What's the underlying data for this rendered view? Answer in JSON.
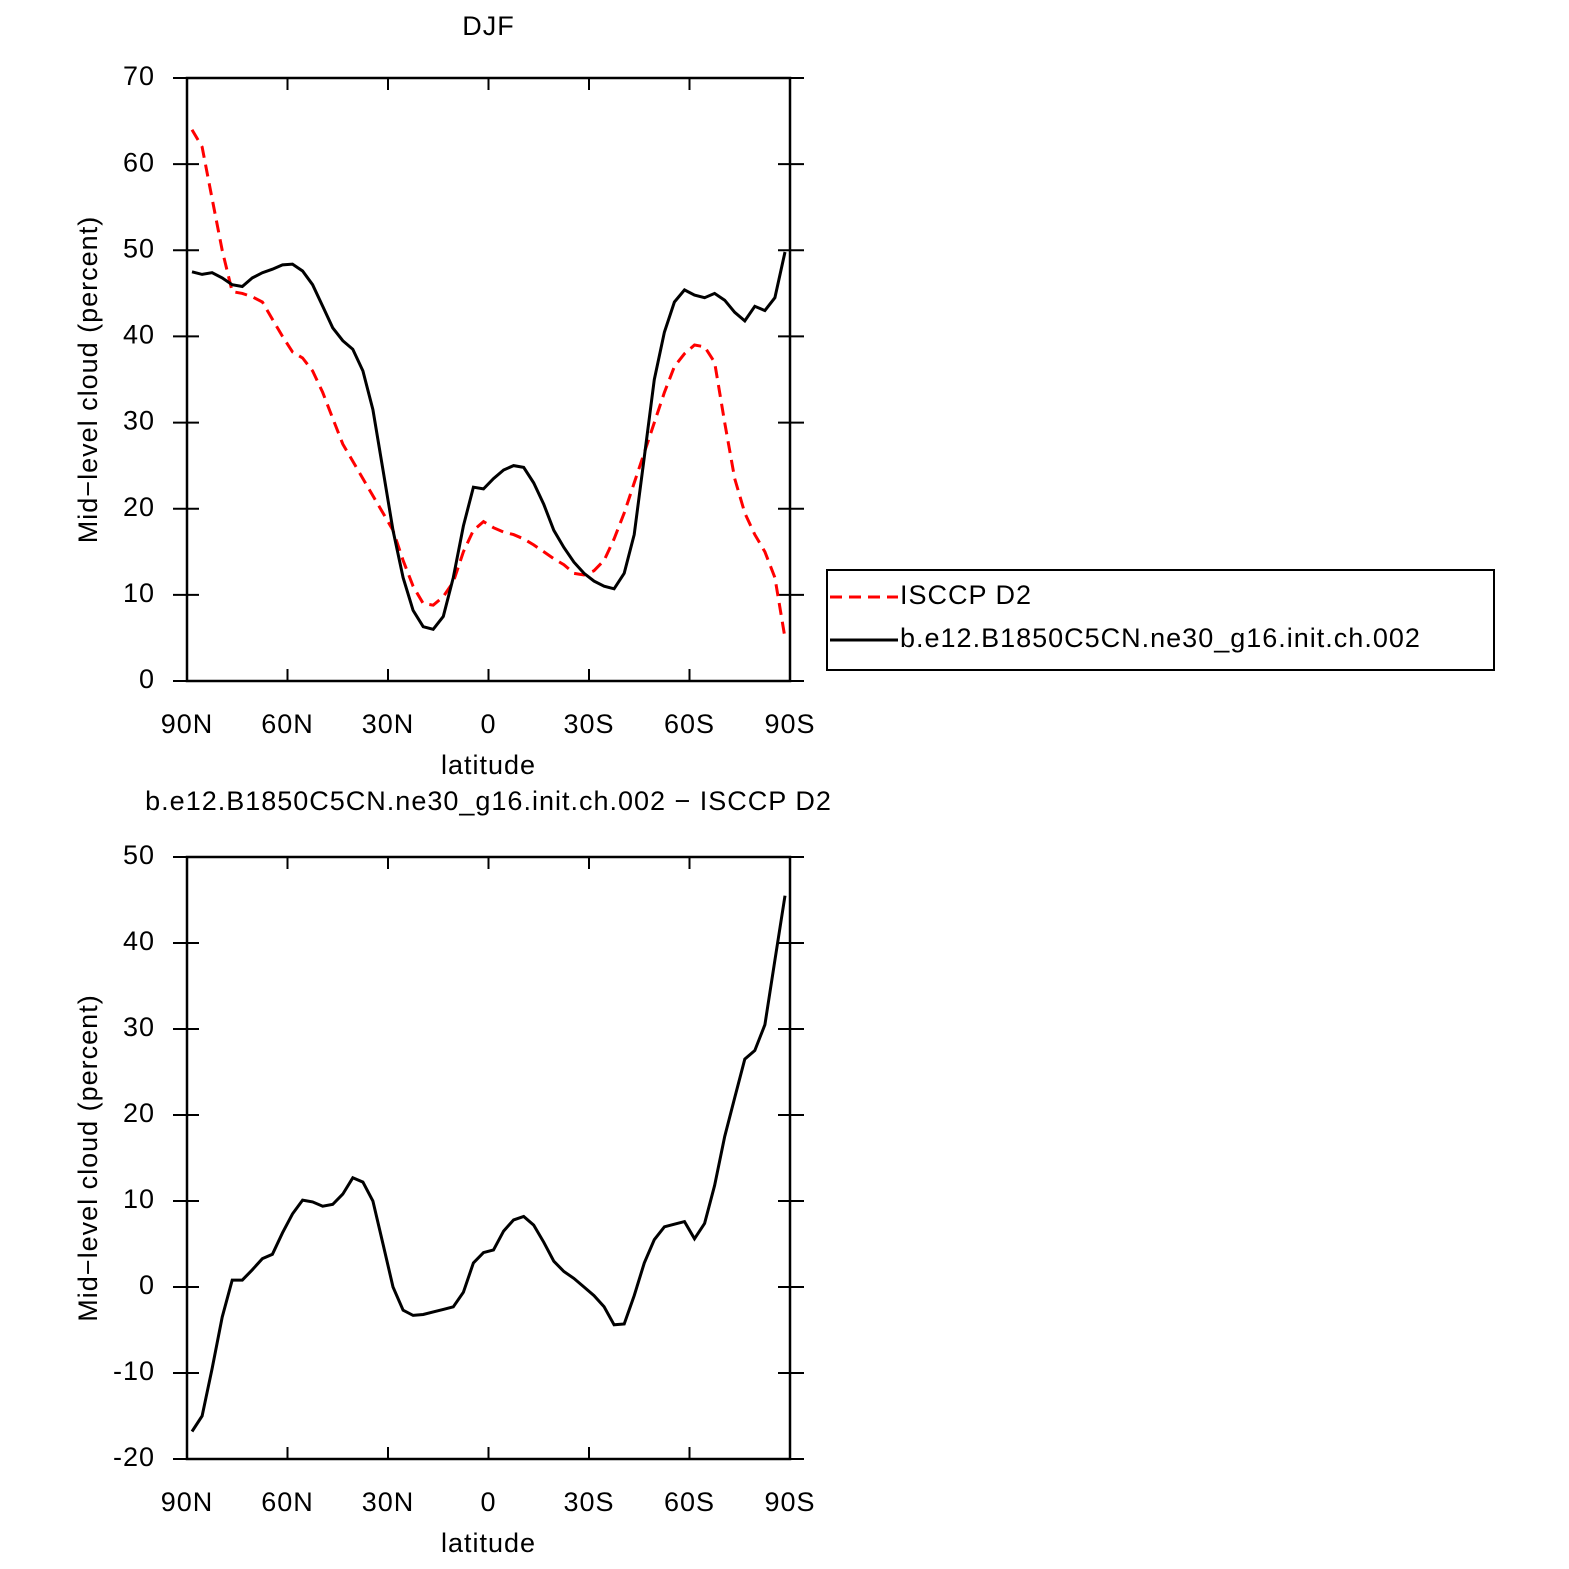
{
  "chart_data": [
    {
      "type": "line",
      "title": "DJF",
      "xlabel": "latitude",
      "ylabel": "Mid−level cloud (percent)",
      "x": [
        88.5,
        85.5,
        82.5,
        79.5,
        76.5,
        73.5,
        70.5,
        67.5,
        64.5,
        61.5,
        58.5,
        55.5,
        52.5,
        49.5,
        46.5,
        43.5,
        40.5,
        37.5,
        34.5,
        31.5,
        28.5,
        25.5,
        22.5,
        19.5,
        16.5,
        13.5,
        10.5,
        7.5,
        4.5,
        1.5,
        -1.5,
        -4.5,
        -7.5,
        -10.5,
        -13.5,
        -16.5,
        -19.5,
        -22.5,
        -25.5,
        -28.5,
        -31.5,
        -34.5,
        -37.5,
        -40.5,
        -43.5,
        -46.5,
        -49.5,
        -52.5,
        -55.5,
        -58.5,
        -61.5,
        -64.5,
        -67.5,
        -70.5,
        -73.5,
        -76.5,
        -79.5,
        -82.5,
        -85.5,
        -88.5
      ],
      "series": [
        {
          "name": "ISCCP D2",
          "color": "#ff0000",
          "dashed": true,
          "values": [
            64,
            62,
            56,
            50,
            45.2,
            45,
            44.6,
            44,
            42,
            40,
            38.2,
            37.5,
            36,
            33.5,
            30.5,
            27.5,
            25.5,
            23.5,
            21.5,
            19.5,
            17.5,
            14,
            11,
            9,
            8.8,
            9.8,
            11.5,
            15,
            17.5,
            18.5,
            17.8,
            17.3,
            17,
            16.5,
            15.8,
            15,
            14.2,
            13.5,
            12.5,
            12.3,
            12.8,
            14,
            16.5,
            19.5,
            23,
            26.5,
            30,
            33.5,
            36.5,
            38,
            39,
            38.8,
            37,
            30,
            23.5,
            19.5,
            17,
            15,
            12,
            5
          ]
        },
        {
          "name": "b.e12.B1850C5CN.ne30_g16.init.ch.002",
          "color": "#000000",
          "dashed": false,
          "values": [
            47.5,
            47.2,
            47.4,
            46.8,
            46,
            45.8,
            46.8,
            47.4,
            47.8,
            48.3,
            48.4,
            47.6,
            46,
            43.5,
            41,
            39.5,
            38.5,
            36,
            31.5,
            24.5,
            17.5,
            12,
            8.2,
            6.3,
            6,
            7.5,
            12,
            18,
            22.5,
            22.3,
            23.5,
            24.5,
            25,
            24.8,
            23,
            20.5,
            17.5,
            15.5,
            13.8,
            12.5,
            11.6,
            11,
            10.7,
            12.5,
            17,
            26,
            35,
            40.5,
            44,
            45.4,
            44.8,
            44.5,
            45,
            44.2,
            42.8,
            41.8,
            43.5,
            43,
            44.5,
            49.8
          ]
        }
      ],
      "xlim": [
        90,
        -90
      ],
      "xticks": [
        {
          "value": 90,
          "label": "90N"
        },
        {
          "value": 60,
          "label": "60N"
        },
        {
          "value": 30,
          "label": "30N"
        },
        0,
        {
          "value": -30,
          "label": "30S"
        },
        {
          "value": -60,
          "label": "60S"
        },
        {
          "value": -90,
          "label": "90S"
        }
      ],
      "ylim": [
        0,
        70
      ],
      "yticks": [
        0,
        10,
        20,
        30,
        40,
        50,
        60,
        70
      ],
      "legend": "right"
    },
    {
      "type": "line",
      "title": "b.e12.B1850C5CN.ne30_g16.init.ch.002 − ISCCP D2",
      "xlabel": "latitude",
      "ylabel": "Mid−level cloud (percent)",
      "x": [
        88.5,
        85.5,
        82.5,
        79.5,
        76.5,
        73.5,
        70.5,
        67.5,
        64.5,
        61.5,
        58.5,
        55.5,
        52.5,
        49.5,
        46.5,
        43.5,
        40.5,
        37.5,
        34.5,
        31.5,
        28.5,
        25.5,
        22.5,
        19.5,
        16.5,
        13.5,
        10.5,
        7.5,
        4.5,
        1.5,
        -1.5,
        -4.5,
        -7.5,
        -10.5,
        -13.5,
        -16.5,
        -19.5,
        -22.5,
        -25.5,
        -28.5,
        -31.5,
        -34.5,
        -37.5,
        -40.5,
        -43.5,
        -46.5,
        -49.5,
        -52.5,
        -55.5,
        -58.5,
        -61.5,
        -64.5,
        -67.5,
        -70.5,
        -73.5,
        -76.5,
        -79.5,
        -82.5,
        -85.5,
        -88.5
      ],
      "series": [
        {
          "color": "#000000",
          "dashed": false,
          "values": [
            -16.8,
            -15,
            -9.5,
            -3.5,
            0.8,
            0.8,
            2,
            3.3,
            3.8,
            6.3,
            8.5,
            10.1,
            9.9,
            9.4,
            9.6,
            10.8,
            12.7,
            12.2,
            10,
            5,
            0,
            -2.7,
            -3.3,
            -3.2,
            -2.9,
            -2.6,
            -2.3,
            -0.6,
            2.8,
            4,
            4.3,
            6.5,
            7.8,
            8.2,
            7.2,
            5.2,
            3,
            1.8,
            1,
            0,
            -1,
            -2.3,
            -4.4,
            -4.3,
            -1,
            2.8,
            5.5,
            7,
            7.3,
            7.6,
            5.6,
            7.4,
            11.8,
            17.5,
            22,
            26.5,
            27.5,
            30.5,
            38,
            45.5
          ]
        }
      ],
      "xlim": [
        90,
        -90
      ],
      "xticks": [
        {
          "value": 90,
          "label": "90N"
        },
        {
          "value": 60,
          "label": "60N"
        },
        {
          "value": 30,
          "label": "30N"
        },
        0,
        {
          "value": -30,
          "label": "30S"
        },
        {
          "value": -60,
          "label": "60S"
        },
        {
          "value": -90,
          "label": "90S"
        }
      ],
      "ylim": [
        -20,
        50
      ],
      "yticks": [
        -20,
        -10,
        0,
        10,
        20,
        30,
        40,
        50
      ]
    }
  ]
}
